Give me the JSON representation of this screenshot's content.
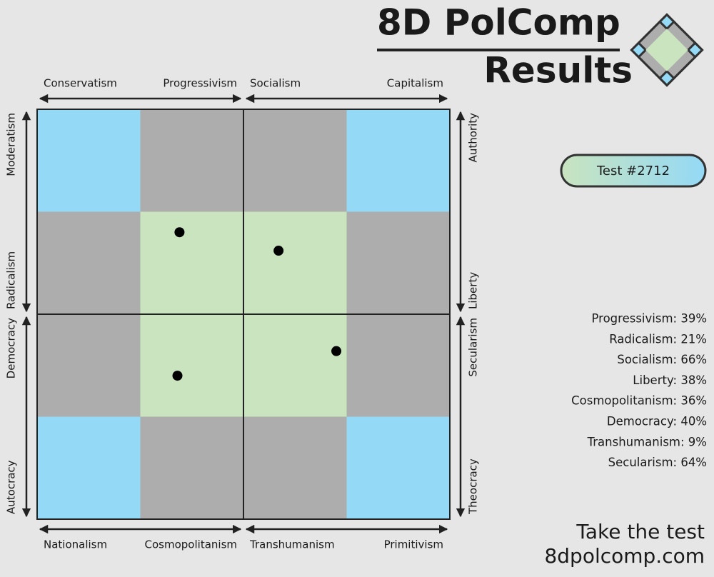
{
  "header": {
    "title": "8D PolComp",
    "subtitle": "Results"
  },
  "test_label": "Test #2712",
  "scores": [
    "Progressivism: 39%",
    "Radicalism: 21%",
    "Socialism: 66%",
    "Liberty: 38%",
    "Cosmopolitanism: 36%",
    "Democracy: 40%",
    "Transhumanism: 9%",
    "Secularism: 64%"
  ],
  "footer": [
    "Take the test",
    "8dpolcomp.com"
  ],
  "chart_data": [
    {
      "type": "scatter",
      "x_labels": [
        "Conservatism",
        "Progressivism"
      ],
      "y_labels": [
        "Moderatism",
        "Radicalism"
      ],
      "xlim": [
        0,
        100
      ],
      "ylim": [
        0,
        100
      ],
      "x": [
        69
      ],
      "values": [
        40
      ]
    },
    {
      "type": "scatter",
      "x_labels": [
        "Socialism",
        "Capitalism"
      ],
      "y_labels": [
        "Authority",
        "Liberty"
      ],
      "xlim": [
        0,
        100
      ],
      "ylim": [
        0,
        100
      ],
      "x": [
        17
      ],
      "values": [
        31
      ]
    },
    {
      "type": "scatter",
      "x_labels": [
        "Nationalism",
        "Cosmopolitanism"
      ],
      "y_labels": [
        "Democracy",
        "Autocracy"
      ],
      "xlim": [
        0,
        100
      ],
      "ylim": [
        0,
        100
      ],
      "x": [
        68
      ],
      "values": [
        70
      ]
    },
    {
      "type": "scatter",
      "x_labels": [
        "Transhumanism",
        "Primitivism"
      ],
      "y_labels": [
        "Secularism",
        "Theocracy"
      ],
      "xlim": [
        0,
        100
      ],
      "ylim": [
        0,
        100
      ],
      "x": [
        45
      ],
      "values": [
        82
      ]
    }
  ]
}
